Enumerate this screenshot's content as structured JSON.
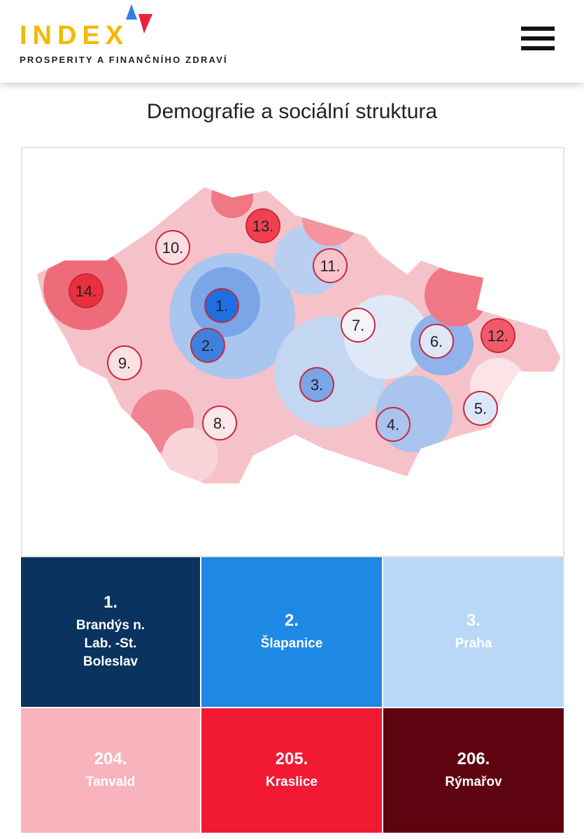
{
  "header": {
    "logo": "INDEX",
    "tagline": "PROSPERITY A FINANČNÍHO ZDRAVÍ"
  },
  "title": "Demografie a sociální struktura",
  "map": {
    "markers": [
      {
        "label": "1.",
        "color": "#1e6fe0"
      },
      {
        "label": "2.",
        "color": "#3f80de"
      },
      {
        "label": "3.",
        "color": "#7aa6e8"
      },
      {
        "label": "4.",
        "color": "#a9c4ee"
      },
      {
        "label": "5.",
        "color": "#dce7f8"
      },
      {
        "label": "6.",
        "color": "#dce7f8"
      },
      {
        "label": "7.",
        "color": "#f4f4f8"
      },
      {
        "label": "8.",
        "color": "#fbe6ea"
      },
      {
        "label": "9.",
        "color": "#fbe0e4"
      },
      {
        "label": "10.",
        "color": "#fbdde2"
      },
      {
        "label": "11.",
        "color": "#f8c4cc"
      },
      {
        "label": "12.",
        "color": "#f05a6a"
      },
      {
        "label": "13.",
        "color": "#f0404f"
      },
      {
        "label": "14.",
        "color": "#e8303f"
      }
    ]
  },
  "tiles": [
    {
      "rank": "1.",
      "name": "Brandýs n. Lab. -St. Boleslav",
      "color": "#0a3360"
    },
    {
      "rank": "2.",
      "name": "Šlapanice",
      "color": "#1e88e5"
    },
    {
      "rank": "3.",
      "name": "Praha",
      "color": "#b9d8f8"
    },
    {
      "rank": "204.",
      "name": "Tanvald",
      "color": "#f8b3bd"
    },
    {
      "rank": "205.",
      "name": "Kraslice",
      "color": "#f21a33"
    },
    {
      "rank": "206.",
      "name": "Rýmařov",
      "color": "#5e0410"
    }
  ]
}
